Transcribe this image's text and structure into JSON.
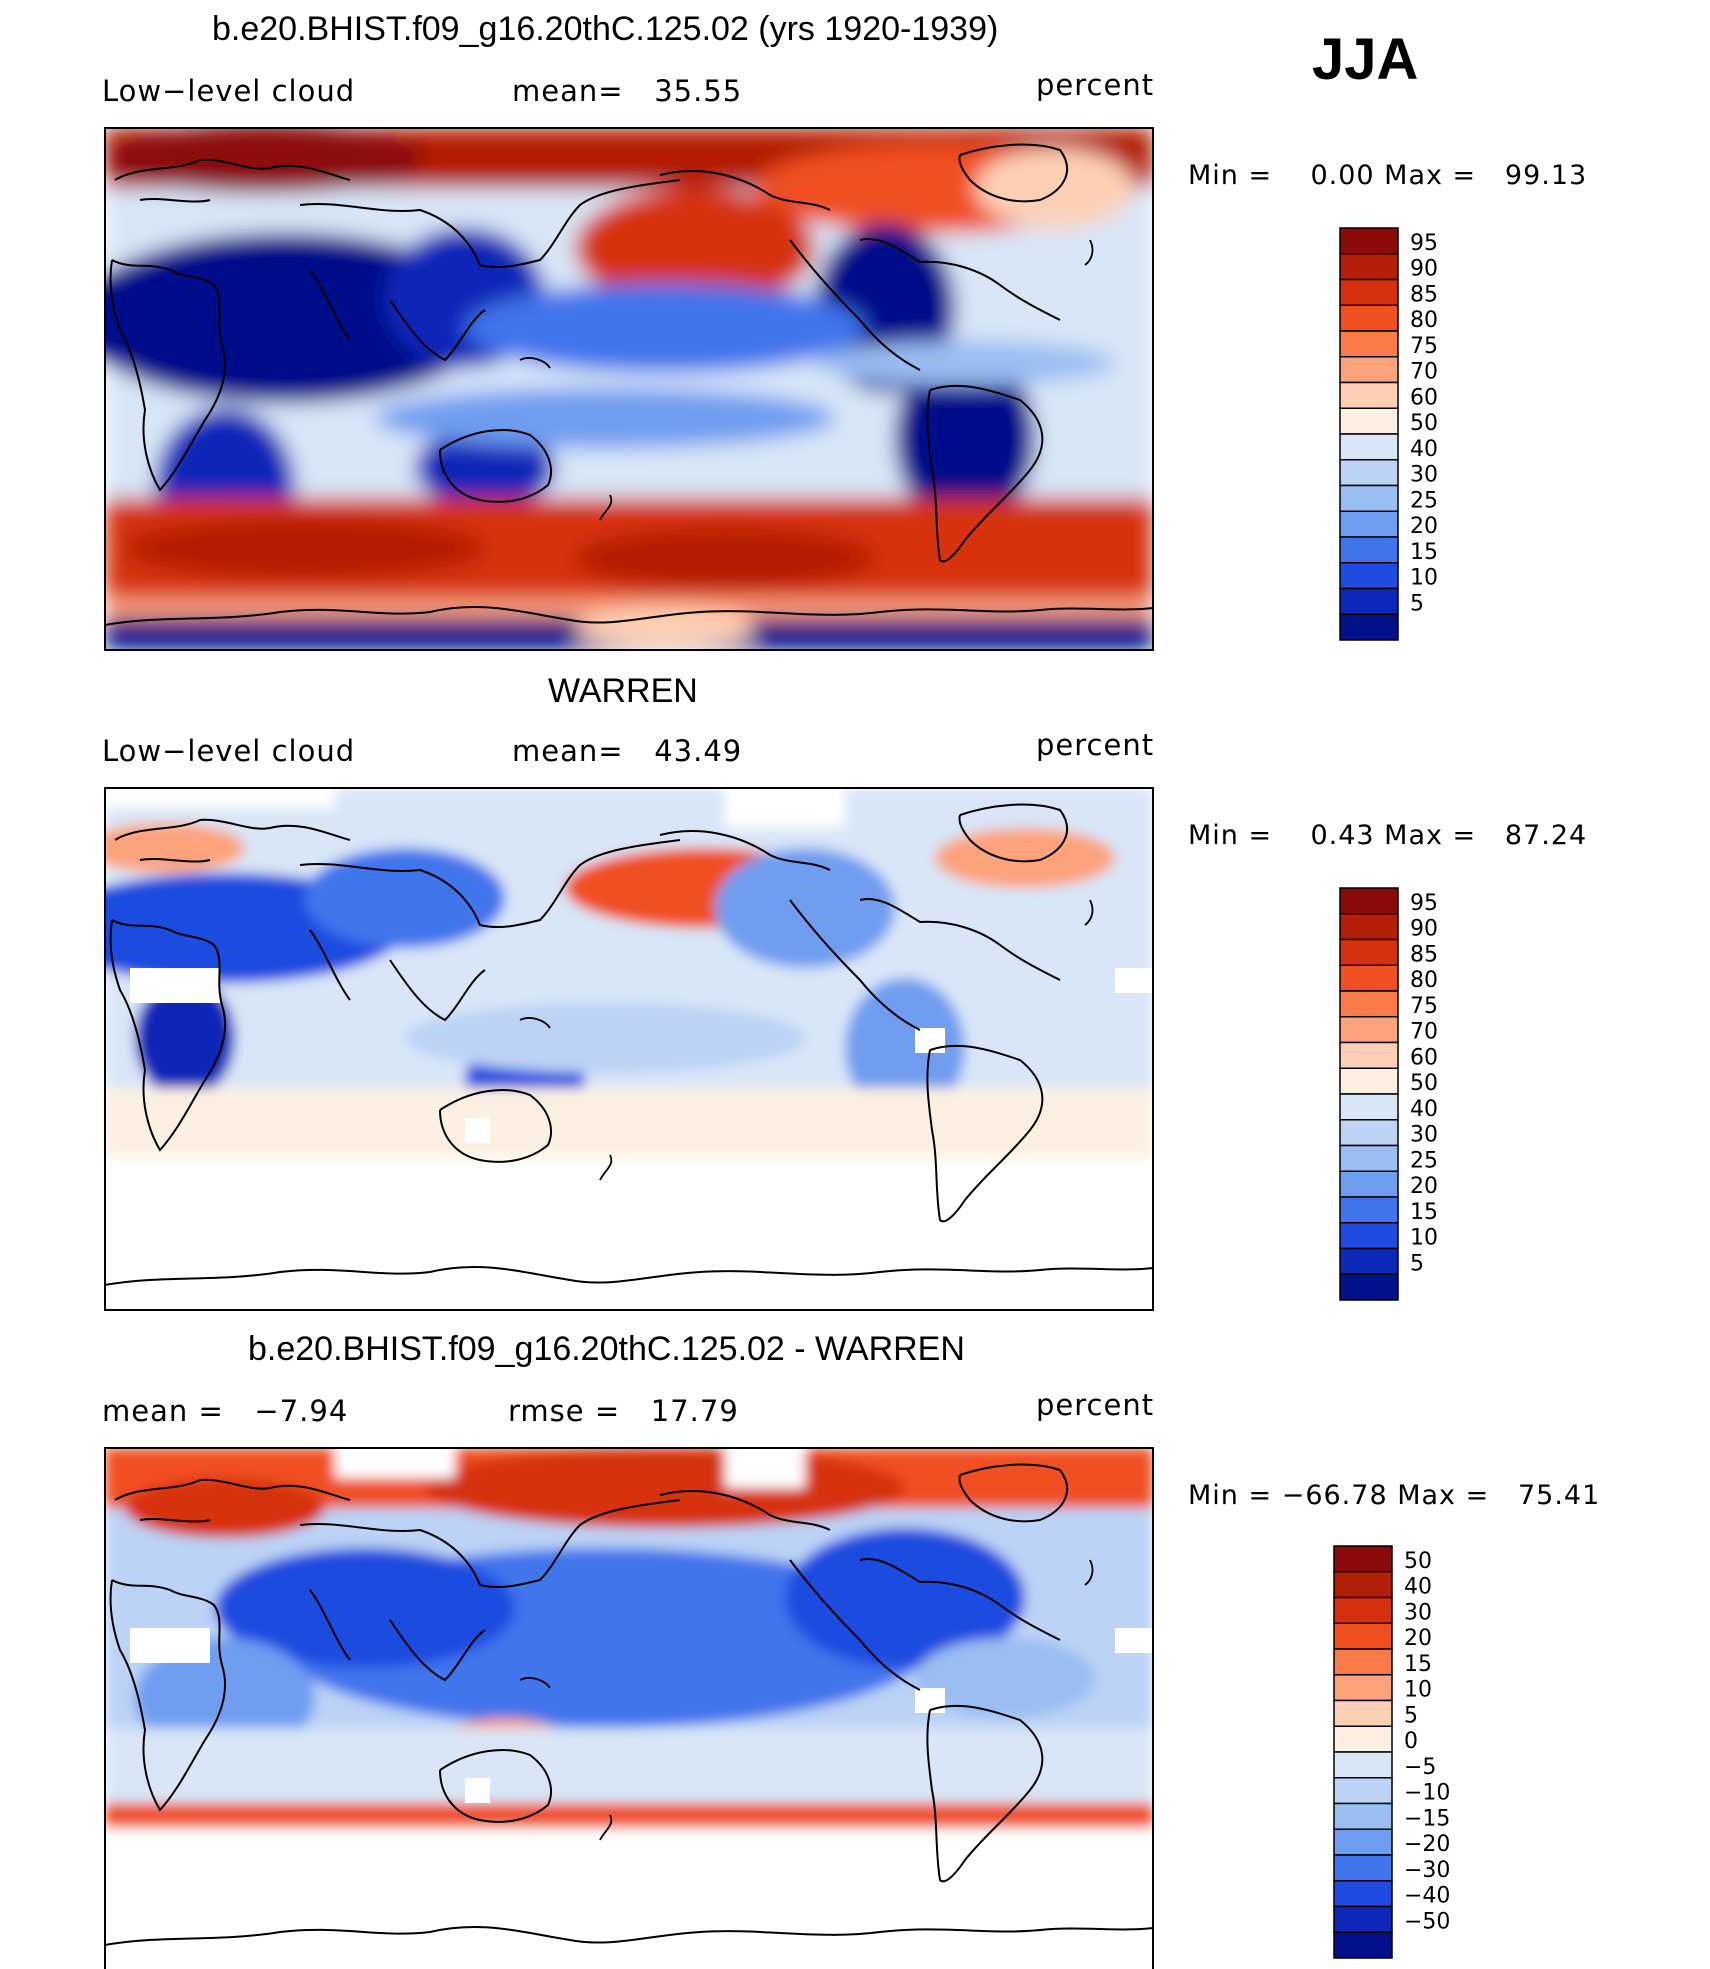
{
  "season": "JJA",
  "panels": [
    {
      "title": "b.e20.BHIST.f09_g16.20thC.125.02 (yrs 1920-1939)",
      "left_label": "Low−level cloud",
      "center_label": "mean=   35.55",
      "right_label": "percent",
      "minmax": "Min =    0.00 Max =   99.13",
      "colorbar_labels": [
        "95",
        "90",
        "85",
        "80",
        "75",
        "70",
        "60",
        "50",
        "40",
        "30",
        "25",
        "20",
        "15",
        "10",
        "5"
      ]
    },
    {
      "title": "WARREN",
      "left_label": "Low−level cloud",
      "center_label": "mean=   43.49",
      "right_label": "percent",
      "minmax": "Min =    0.43 Max =   87.24",
      "colorbar_labels": [
        "95",
        "90",
        "85",
        "80",
        "75",
        "70",
        "60",
        "50",
        "40",
        "30",
        "25",
        "20",
        "15",
        "10",
        "5"
      ]
    },
    {
      "title": "b.e20.BHIST.f09_g16.20thC.125.02 - WARREN",
      "left_label": "mean =   −7.94",
      "center_label": "rmse =   17.79",
      "right_label": "percent",
      "minmax": "Min = −66.78 Max =   75.41",
      "colorbar_labels": [
        "50",
        "40",
        "30",
        "20",
        "15",
        "10",
        "5",
        "0",
        "−5",
        "−10",
        "−15",
        "−20",
        "−30",
        "−40",
        "−50"
      ]
    }
  ],
  "colors": {
    "scale": [
      "#8b0a0a",
      "#b31e06",
      "#d63010",
      "#f05020",
      "#fa7b48",
      "#fca37c",
      "#fdd0b6",
      "#fdf0e2",
      "#d8e6f8",
      "#bcd3f6",
      "#9abdf2",
      "#6f9df0",
      "#3f74ec",
      "#1f4be0",
      "#0c28b8",
      "#02118a"
    ]
  }
}
